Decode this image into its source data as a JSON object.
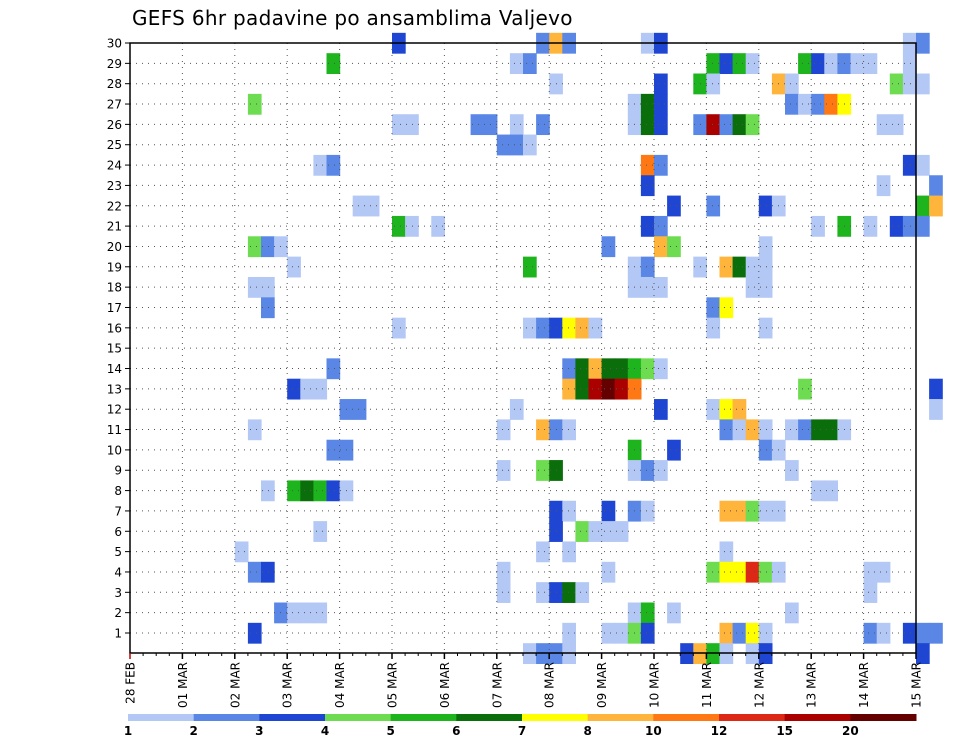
{
  "chart_data": {
    "type": "heatmap",
    "title": "GEFS 6hr padavine po ansamblima Valjevo",
    "xlabel": "",
    "ylabel": "",
    "x_tick_labels": [
      "28 FEB",
      "01 MAR",
      "02 MAR",
      "03 MAR",
      "04 MAR",
      "05 MAR",
      "06 MAR",
      "07 MAR",
      "08 MAR",
      "09 MAR",
      "10 MAR",
      "11 MAR",
      "12 MAR",
      "13 MAR",
      "14 MAR",
      "15 MAR"
    ],
    "y_tick_labels": [
      "1",
      "2",
      "3",
      "4",
      "5",
      "6",
      "7",
      "8",
      "9",
      "10",
      "11",
      "12",
      "13",
      "14",
      "15",
      "16",
      "17",
      "18",
      "19",
      "20",
      "21",
      "22",
      "23",
      "24",
      "25",
      "26",
      "27",
      "28",
      "29",
      "30"
    ],
    "grid": true,
    "legend_position": "bottom",
    "levels": [
      {
        "label": "1",
        "color": "#b4c8f5"
      },
      {
        "label": "2",
        "color": "#5a87e6"
      },
      {
        "label": "3",
        "color": "#1e46d2"
      },
      {
        "label": "4",
        "color": "#6edc50"
      },
      {
        "label": "5",
        "color": "#1eb41e"
      },
      {
        "label": "6",
        "color": "#0a6e0a"
      },
      {
        "label": "7",
        "color": "#ffff00"
      },
      {
        "label": "8",
        "color": "#ffb43c"
      },
      {
        "label": "10",
        "color": "#ff7814"
      },
      {
        "label": "12",
        "color": "#dc2814"
      },
      {
        "label": "15",
        "color": "#aa0000"
      },
      {
        "label": "20",
        "color": "#640000"
      }
    ],
    "legend_tick_labels": [
      "1",
      "2",
      "3",
      "4",
      "5",
      "6",
      "7",
      "8",
      "10",
      "12",
      "15",
      "20"
    ],
    "cells": [
      [
        10.0,
        30,
        3
      ],
      [
        15.5,
        30,
        2
      ],
      [
        16.0,
        30,
        8
      ],
      [
        16.5,
        30,
        2
      ],
      [
        19.5,
        30,
        1
      ],
      [
        20.0,
        30,
        3
      ],
      [
        29.5,
        30,
        1
      ],
      [
        30.0,
        30,
        2
      ],
      [
        7.5,
        29,
        5
      ],
      [
        14.5,
        29,
        1
      ],
      [
        15.0,
        29,
        2
      ],
      [
        22.0,
        29,
        5
      ],
      [
        22.5,
        29,
        3
      ],
      [
        23.0,
        29,
        5
      ],
      [
        23.5,
        29,
        1
      ],
      [
        25.5,
        29,
        5
      ],
      [
        26.0,
        29,
        3
      ],
      [
        26.5,
        29,
        1
      ],
      [
        27.0,
        29,
        2
      ],
      [
        27.5,
        29,
        1
      ],
      [
        28.0,
        29,
        1
      ],
      [
        29.5,
        29,
        1
      ],
      [
        16.0,
        28,
        1
      ],
      [
        20.0,
        28,
        3
      ],
      [
        21.5,
        28,
        5
      ],
      [
        22.0,
        28,
        1
      ],
      [
        24.5,
        28,
        8
      ],
      [
        25.0,
        28,
        1
      ],
      [
        29.0,
        28,
        4
      ],
      [
        29.5,
        28,
        1
      ],
      [
        30.0,
        28,
        1
      ],
      [
        4.5,
        27,
        4
      ],
      [
        19.0,
        27,
        1
      ],
      [
        19.5,
        27,
        6
      ],
      [
        20.0,
        27,
        3
      ],
      [
        25.0,
        27,
        2
      ],
      [
        25.5,
        27,
        1
      ],
      [
        26.0,
        27,
        2
      ],
      [
        26.5,
        27,
        10
      ],
      [
        27.0,
        27,
        7
      ],
      [
        10.0,
        26,
        1
      ],
      [
        10.5,
        26,
        1
      ],
      [
        13.0,
        26,
        2
      ],
      [
        13.5,
        26,
        2
      ],
      [
        14.5,
        26,
        1
      ],
      [
        15.5,
        26,
        2
      ],
      [
        19.0,
        26,
        1
      ],
      [
        19.5,
        26,
        6
      ],
      [
        20.0,
        26,
        3
      ],
      [
        21.5,
        26,
        2
      ],
      [
        22.0,
        26,
        15
      ],
      [
        22.5,
        26,
        2
      ],
      [
        23.0,
        26,
        6
      ],
      [
        23.5,
        26,
        4
      ],
      [
        28.5,
        26,
        1
      ],
      [
        29.0,
        26,
        1
      ],
      [
        14.0,
        25,
        2
      ],
      [
        14.5,
        25,
        2
      ],
      [
        15.0,
        25,
        1
      ],
      [
        7.0,
        24,
        1
      ],
      [
        7.5,
        24,
        2
      ],
      [
        19.5,
        24,
        10
      ],
      [
        20.0,
        24,
        2
      ],
      [
        29.5,
        24,
        3
      ],
      [
        30.0,
        24,
        1
      ],
      [
        19.5,
        23,
        3
      ],
      [
        28.5,
        23,
        1
      ],
      [
        30.5,
        23,
        2
      ],
      [
        8.5,
        22,
        1
      ],
      [
        9.0,
        22,
        1
      ],
      [
        20.5,
        22,
        3
      ],
      [
        22.0,
        22,
        2
      ],
      [
        24.0,
        22,
        3
      ],
      [
        24.5,
        22,
        1
      ],
      [
        30.0,
        22,
        5
      ],
      [
        30.5,
        22,
        8
      ],
      [
        10.0,
        21,
        5
      ],
      [
        10.5,
        21,
        1
      ],
      [
        11.5,
        21,
        1
      ],
      [
        19.5,
        21,
        3
      ],
      [
        20.0,
        21,
        2
      ],
      [
        26.0,
        21,
        1
      ],
      [
        27.0,
        21,
        5
      ],
      [
        28.0,
        21,
        1
      ],
      [
        29.0,
        21,
        3
      ],
      [
        29.5,
        21,
        2
      ],
      [
        30.0,
        21,
        2
      ],
      [
        4.5,
        20,
        4
      ],
      [
        5.0,
        20,
        2
      ],
      [
        5.5,
        20,
        1
      ],
      [
        18.0,
        20,
        2
      ],
      [
        20.0,
        20,
        8
      ],
      [
        20.5,
        20,
        4
      ],
      [
        24.0,
        20,
        1
      ],
      [
        6.0,
        19,
        1
      ],
      [
        15.0,
        19,
        5
      ],
      [
        19.0,
        19,
        1
      ],
      [
        19.5,
        19,
        2
      ],
      [
        21.5,
        19,
        1
      ],
      [
        22.5,
        19,
        8
      ],
      [
        23.0,
        19,
        6
      ],
      [
        23.5,
        19,
        1
      ],
      [
        24.0,
        19,
        1
      ],
      [
        4.5,
        18,
        1
      ],
      [
        5.0,
        18,
        1
      ],
      [
        19.0,
        18,
        1
      ],
      [
        19.5,
        18,
        1
      ],
      [
        20.0,
        18,
        1
      ],
      [
        23.5,
        18,
        1
      ],
      [
        24.0,
        18,
        1
      ],
      [
        5.0,
        17,
        2
      ],
      [
        22.0,
        17,
        2
      ],
      [
        22.5,
        17,
        7
      ],
      [
        10.0,
        16,
        1
      ],
      [
        15.0,
        16,
        1
      ],
      [
        15.5,
        16,
        2
      ],
      [
        16.0,
        16,
        3
      ],
      [
        16.5,
        16,
        7
      ],
      [
        17.0,
        16,
        8
      ],
      [
        17.5,
        16,
        1
      ],
      [
        22.0,
        16,
        1
      ],
      [
        24.0,
        16,
        1
      ],
      [
        7.5,
        14,
        2
      ],
      [
        16.5,
        14,
        2
      ],
      [
        17.0,
        14,
        6
      ],
      [
        17.5,
        14,
        8
      ],
      [
        18.0,
        14,
        6
      ],
      [
        18.5,
        14,
        6
      ],
      [
        19.0,
        14,
        5
      ],
      [
        19.5,
        14,
        4
      ],
      [
        20.0,
        14,
        1
      ],
      [
        6.0,
        13,
        3
      ],
      [
        6.5,
        13,
        1
      ],
      [
        7.0,
        13,
        1
      ],
      [
        16.5,
        13,
        8
      ],
      [
        17.0,
        13,
        6
      ],
      [
        17.5,
        13,
        15
      ],
      [
        18.0,
        13,
        20
      ],
      [
        18.5,
        13,
        15
      ],
      [
        19.0,
        13,
        10
      ],
      [
        25.5,
        13,
        4
      ],
      [
        30.5,
        13,
        3
      ],
      [
        8.0,
        12,
        2
      ],
      [
        8.5,
        12,
        2
      ],
      [
        14.5,
        12,
        1
      ],
      [
        20.0,
        12,
        3
      ],
      [
        22.0,
        12,
        1
      ],
      [
        22.5,
        12,
        7
      ],
      [
        23.0,
        12,
        8
      ],
      [
        30.5,
        12,
        1
      ],
      [
        4.5,
        11,
        1
      ],
      [
        14.0,
        11,
        1
      ],
      [
        15.5,
        11,
        8
      ],
      [
        16.0,
        11,
        2
      ],
      [
        16.5,
        11,
        1
      ],
      [
        22.5,
        11,
        2
      ],
      [
        23.0,
        11,
        1
      ],
      [
        23.5,
        11,
        8
      ],
      [
        24.0,
        11,
        1
      ],
      [
        25.0,
        11,
        1
      ],
      [
        25.5,
        11,
        2
      ],
      [
        26.0,
        11,
        6
      ],
      [
        26.5,
        11,
        6
      ],
      [
        27.0,
        11,
        1
      ],
      [
        7.5,
        10,
        2
      ],
      [
        8.0,
        10,
        2
      ],
      [
        19.0,
        10,
        5
      ],
      [
        20.5,
        10,
        3
      ],
      [
        24.0,
        10,
        2
      ],
      [
        24.5,
        10,
        1
      ],
      [
        14.0,
        9,
        1
      ],
      [
        15.5,
        9,
        4
      ],
      [
        16.0,
        9,
        6
      ],
      [
        19.0,
        9,
        1
      ],
      [
        19.5,
        9,
        2
      ],
      [
        20.0,
        9,
        1
      ],
      [
        25.0,
        9,
        1
      ],
      [
        5.0,
        8,
        1
      ],
      [
        6.0,
        8,
        5
      ],
      [
        6.5,
        8,
        6
      ],
      [
        7.0,
        8,
        5
      ],
      [
        7.5,
        8,
        3
      ],
      [
        8.0,
        8,
        1
      ],
      [
        26.0,
        8,
        1
      ],
      [
        26.5,
        8,
        1
      ],
      [
        16.0,
        7,
        3
      ],
      [
        16.5,
        7,
        1
      ],
      [
        18.0,
        7,
        3
      ],
      [
        19.0,
        7,
        2
      ],
      [
        19.5,
        7,
        1
      ],
      [
        22.5,
        7,
        8
      ],
      [
        23.0,
        7,
        8
      ],
      [
        23.5,
        7,
        4
      ],
      [
        24.0,
        7,
        1
      ],
      [
        24.5,
        7,
        1
      ],
      [
        7.0,
        6,
        1
      ],
      [
        16.0,
        6,
        3
      ],
      [
        17.0,
        6,
        4
      ],
      [
        17.5,
        6,
        1
      ],
      [
        18.0,
        6,
        1
      ],
      [
        18.5,
        6,
        1
      ],
      [
        4.0,
        5,
        1
      ],
      [
        15.5,
        5,
        1
      ],
      [
        16.5,
        5,
        1
      ],
      [
        22.5,
        5,
        1
      ],
      [
        4.5,
        4,
        2
      ],
      [
        5.0,
        4,
        3
      ],
      [
        14.0,
        4,
        1
      ],
      [
        18.0,
        4,
        1
      ],
      [
        22.0,
        4,
        4
      ],
      [
        22.5,
        4,
        7
      ],
      [
        23.0,
        4,
        7
      ],
      [
        23.5,
        4,
        12
      ],
      [
        24.0,
        4,
        4
      ],
      [
        24.5,
        4,
        1
      ],
      [
        28.0,
        4,
        1
      ],
      [
        28.5,
        4,
        1
      ],
      [
        14.0,
        3,
        1
      ],
      [
        15.5,
        3,
        1
      ],
      [
        16.0,
        3,
        3
      ],
      [
        16.5,
        3,
        6
      ],
      [
        17.0,
        3,
        1
      ],
      [
        28.0,
        3,
        1
      ],
      [
        5.5,
        2,
        2
      ],
      [
        6.0,
        2,
        1
      ],
      [
        6.5,
        2,
        1
      ],
      [
        7.0,
        2,
        1
      ],
      [
        19.0,
        2,
        1
      ],
      [
        19.5,
        2,
        5
      ],
      [
        20.5,
        2,
        1
      ],
      [
        25.0,
        2,
        1
      ],
      [
        4.5,
        1,
        3
      ],
      [
        16.5,
        1,
        1
      ],
      [
        18.0,
        1,
        1
      ],
      [
        18.5,
        1,
        1
      ],
      [
        19.0,
        1,
        4
      ],
      [
        19.5,
        1,
        3
      ],
      [
        22.5,
        1,
        8
      ],
      [
        23.0,
        1,
        2
      ],
      [
        23.5,
        1,
        7
      ],
      [
        24.0,
        1,
        1
      ],
      [
        28.0,
        1,
        2
      ],
      [
        28.5,
        1,
        1
      ],
      [
        29.5,
        1,
        3
      ],
      [
        30.0,
        1,
        2
      ],
      [
        30.5,
        1,
        2
      ],
      [
        15.0,
        0,
        1
      ],
      [
        15.5,
        0,
        2
      ],
      [
        16.0,
        0,
        2
      ],
      [
        16.5,
        0,
        1
      ],
      [
        21.0,
        0,
        3
      ],
      [
        21.5,
        0,
        8
      ],
      [
        22.0,
        0,
        5
      ],
      [
        22.5,
        0,
        1
      ],
      [
        23.5,
        0,
        1
      ],
      [
        24.0,
        0,
        3
      ],
      [
        30.0,
        0,
        3
      ]
    ]
  }
}
